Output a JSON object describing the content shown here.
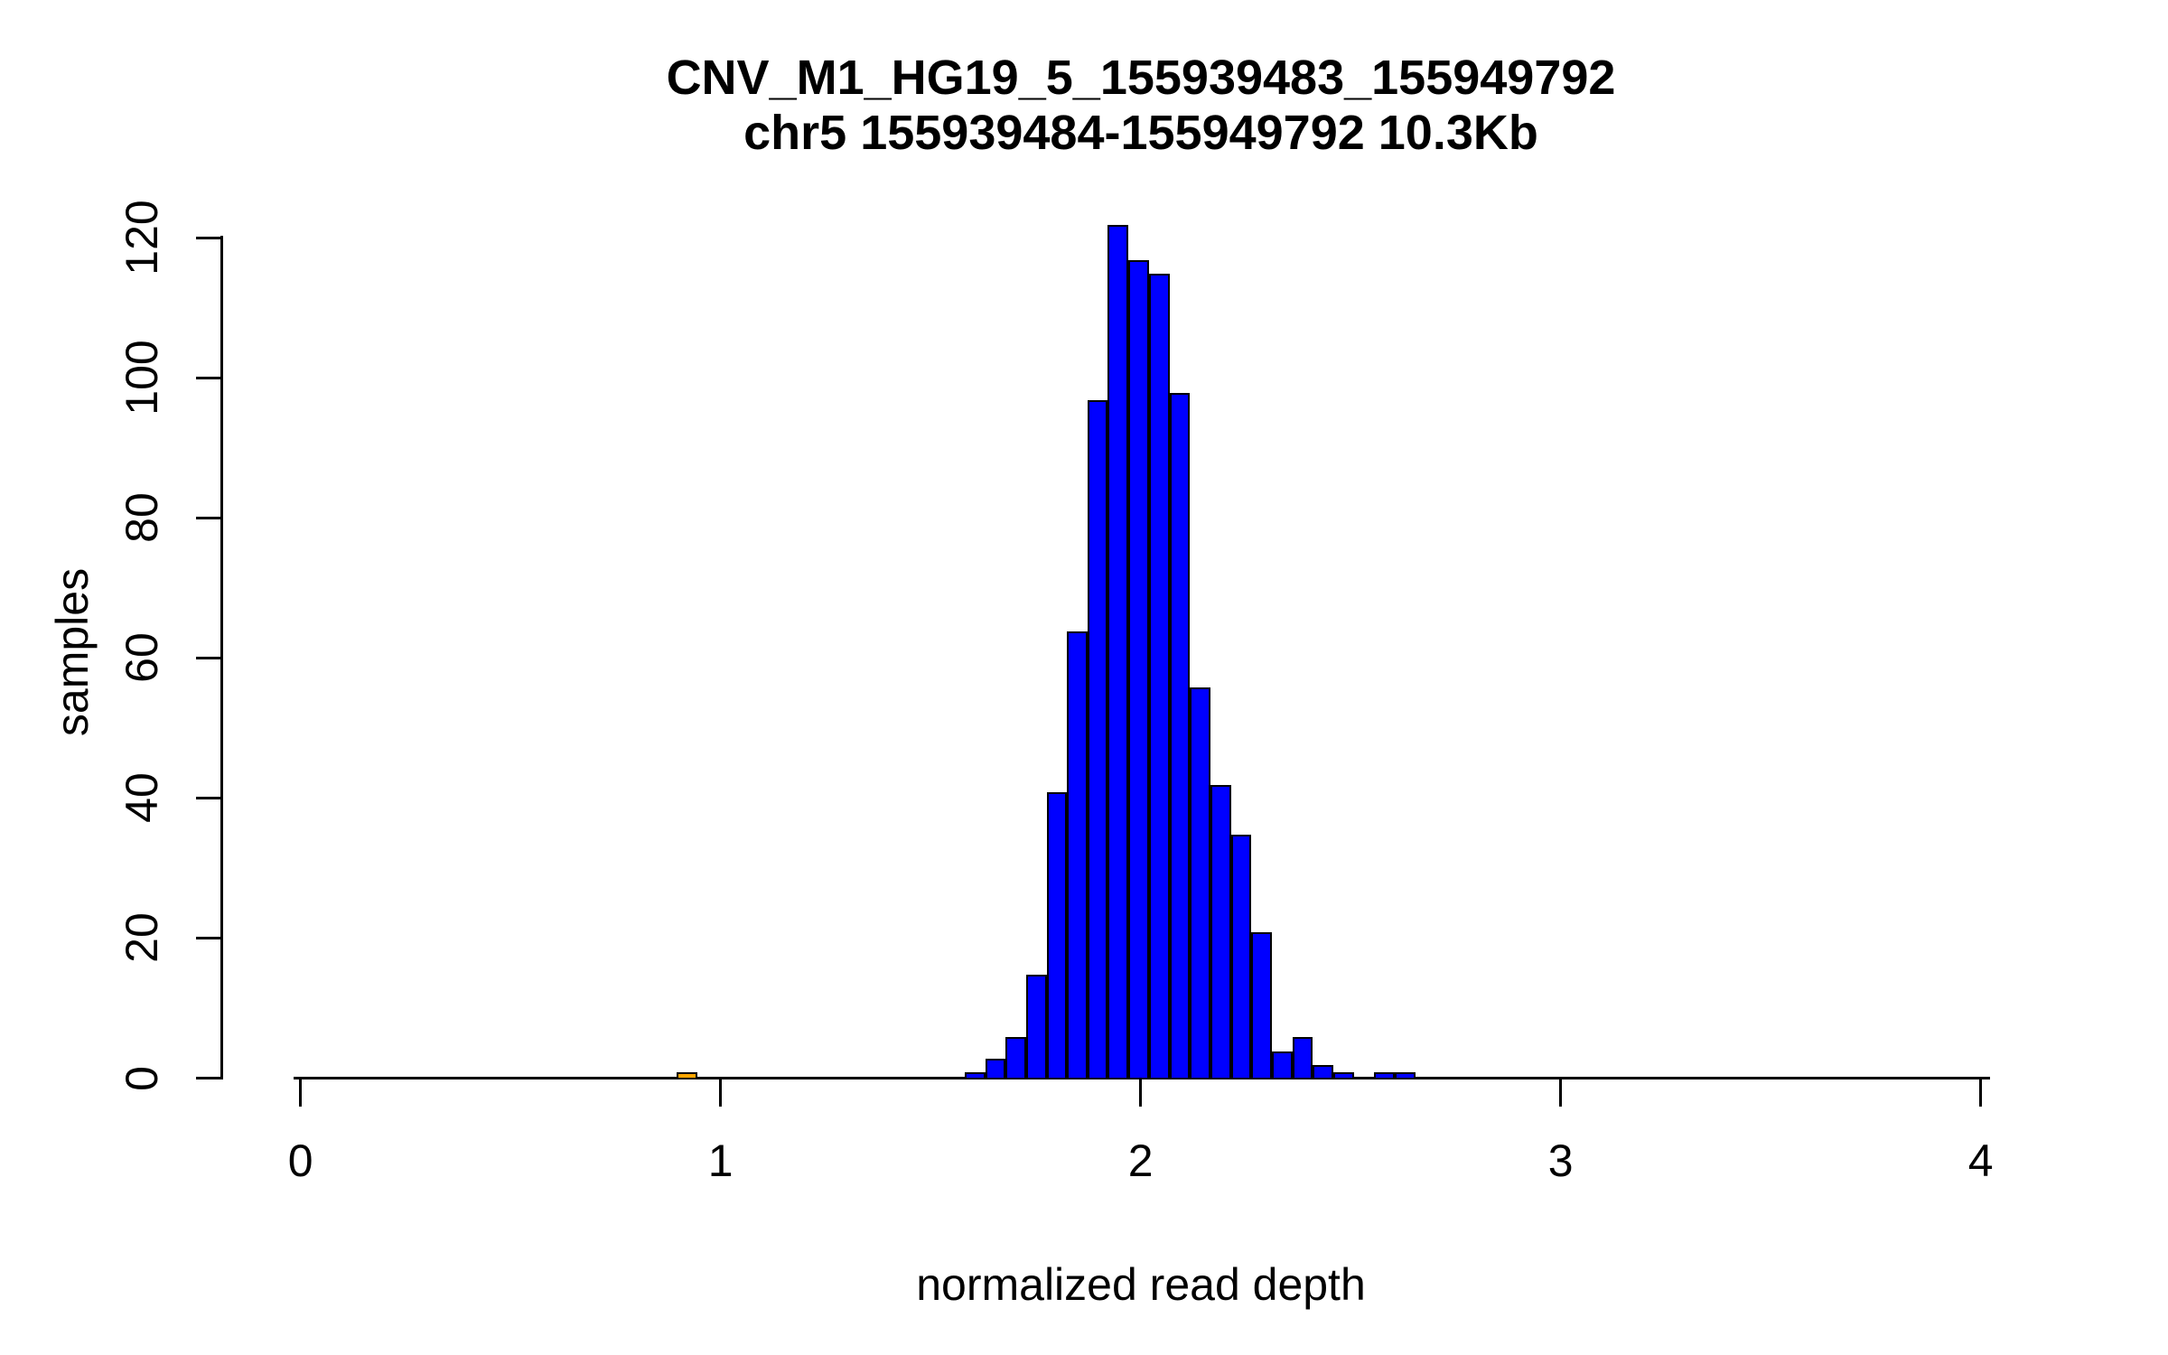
{
  "figure": {
    "kind": "R base-graphics histogram screenshot",
    "background": "#ffffff"
  },
  "chart_data": {
    "type": "bar",
    "subtype": "histogram",
    "title": "CNV_M1_HG19_5_155939483_155949792",
    "subtitle": "chr5 155939484-155949792 10.3Kb",
    "xlabel": "normalized read depth",
    "ylabel": "samples",
    "xlim": [
      0,
      4
    ],
    "ylim": [
      0,
      120
    ],
    "x_ticks": [
      0,
      1,
      2,
      3,
      4
    ],
    "y_ticks": [
      0,
      20,
      40,
      60,
      80,
      100,
      120
    ],
    "grid": "off",
    "legend": "none",
    "bin_width": 0.049,
    "colors": {
      "main_fill": "#0000FF",
      "outlier_fill": "#FFA500",
      "bar_border": "#000000",
      "axis": "#000000",
      "text": "#000000"
    },
    "bars": [
      {
        "x0": 0.895,
        "x1": 0.944,
        "count": 1,
        "series": "outlier"
      },
      {
        "x0": 1.581,
        "x1": 1.63,
        "count": 1,
        "series": "main"
      },
      {
        "x0": 1.63,
        "x1": 1.679,
        "count": 3,
        "series": "main"
      },
      {
        "x0": 1.679,
        "x1": 1.727,
        "count": 6,
        "series": "main"
      },
      {
        "x0": 1.727,
        "x1": 1.776,
        "count": 15,
        "series": "main"
      },
      {
        "x0": 1.776,
        "x1": 1.825,
        "count": 41,
        "series": "main"
      },
      {
        "x0": 1.825,
        "x1": 1.874,
        "count": 64,
        "series": "main"
      },
      {
        "x0": 1.874,
        "x1": 1.922,
        "count": 97,
        "series": "main"
      },
      {
        "x0": 1.922,
        "x1": 1.971,
        "count": 122,
        "series": "main"
      },
      {
        "x0": 1.971,
        "x1": 2.02,
        "count": 117,
        "series": "main"
      },
      {
        "x0": 2.02,
        "x1": 2.069,
        "count": 115,
        "series": "main"
      },
      {
        "x0": 2.069,
        "x1": 2.117,
        "count": 98,
        "series": "main"
      },
      {
        "x0": 2.117,
        "x1": 2.166,
        "count": 56,
        "series": "main"
      },
      {
        "x0": 2.166,
        "x1": 2.215,
        "count": 42,
        "series": "main"
      },
      {
        "x0": 2.215,
        "x1": 2.264,
        "count": 35,
        "series": "main"
      },
      {
        "x0": 2.264,
        "x1": 2.313,
        "count": 21,
        "series": "main"
      },
      {
        "x0": 2.313,
        "x1": 2.361,
        "count": 4,
        "series": "main"
      },
      {
        "x0": 2.361,
        "x1": 2.41,
        "count": 6,
        "series": "main"
      },
      {
        "x0": 2.41,
        "x1": 2.459,
        "count": 2,
        "series": "main"
      },
      {
        "x0": 2.459,
        "x1": 2.508,
        "count": 1,
        "series": "main"
      },
      {
        "x0": 2.508,
        "x1": 2.556,
        "count": 0,
        "series": "main"
      },
      {
        "x0": 2.556,
        "x1": 2.605,
        "count": 1,
        "series": "main"
      },
      {
        "x0": 2.605,
        "x1": 2.654,
        "count": 1,
        "series": "main"
      }
    ]
  }
}
